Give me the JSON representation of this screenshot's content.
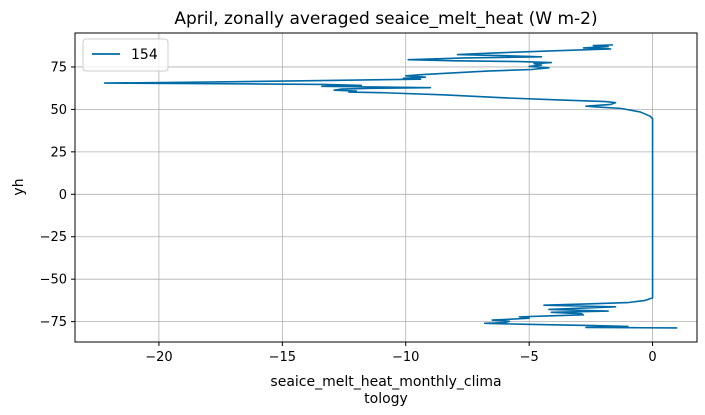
{
  "chart_data": {
    "type": "line",
    "title": "April, zonally averaged seaice_melt_heat (W m-2)",
    "xlabel_lines": [
      "seaice_melt_heat_monthly_clima",
      "tology"
    ],
    "ylabel": "yh",
    "xlim": [
      -23.4,
      1.8
    ],
    "ylim": [
      -87,
      95
    ],
    "x_ticks": [
      -20,
      -15,
      -10,
      -5,
      0
    ],
    "x_tick_labels": [
      "−20",
      "−15",
      "−10",
      "−5",
      "0"
    ],
    "y_ticks": [
      -75,
      -50,
      -25,
      0,
      25,
      50,
      75
    ],
    "y_tick_labels": [
      "−75",
      "−50",
      "−25",
      "0",
      "25",
      "50",
      "75"
    ],
    "grid": true,
    "legend_position": "top-left",
    "series": [
      {
        "name": "154",
        "color": "#006aa6",
        "points": [
          [
            -1.6,
            88.0
          ],
          [
            -2.4,
            87.6
          ],
          [
            -1.8,
            87.0
          ],
          [
            -2.8,
            86.2
          ],
          [
            -1.7,
            85.6
          ],
          [
            -4.0,
            84.5
          ],
          [
            -6.5,
            83.2
          ],
          [
            -7.9,
            82.3
          ],
          [
            -6.2,
            81.7
          ],
          [
            -4.5,
            81.0
          ],
          [
            -7.6,
            80.3
          ],
          [
            -9.9,
            79.3
          ],
          [
            -8.0,
            78.6
          ],
          [
            -5.4,
            78.2
          ],
          [
            -4.1,
            77.6
          ],
          [
            -4.8,
            76.9
          ],
          [
            -4.5,
            76.1
          ],
          [
            -5.0,
            75.3
          ],
          [
            -4.2,
            74.5
          ],
          [
            -4.9,
            73.5
          ],
          [
            -6.7,
            72.6
          ],
          [
            -8.2,
            71.4
          ],
          [
            -9.3,
            70.5
          ],
          [
            -10.0,
            69.8
          ],
          [
            -9.2,
            69.0
          ],
          [
            -10.1,
            68.3
          ],
          [
            -9.4,
            67.8
          ],
          [
            -13.8,
            66.9
          ],
          [
            -18.0,
            66.1
          ],
          [
            -22.2,
            65.5
          ],
          [
            -17.5,
            65.1
          ],
          [
            -13.3,
            64.7
          ],
          [
            -11.8,
            64.1
          ],
          [
            -13.4,
            63.6
          ],
          [
            -11.0,
            63.2
          ],
          [
            -9.0,
            62.8
          ],
          [
            -11.4,
            62.4
          ],
          [
            -12.6,
            62.0
          ],
          [
            -12.9,
            61.3
          ],
          [
            -12.0,
            60.8
          ],
          [
            -12.3,
            60.2
          ],
          [
            -10.9,
            59.8
          ],
          [
            -8.5,
            58.6
          ],
          [
            -6.0,
            56.8
          ],
          [
            -3.8,
            55.6
          ],
          [
            -1.9,
            54.6
          ],
          [
            -1.5,
            54.0
          ],
          [
            -1.7,
            52.9
          ],
          [
            -2.7,
            51.9
          ],
          [
            -2.1,
            51.3
          ],
          [
            -1.3,
            50.6
          ],
          [
            -0.5,
            48.5
          ],
          [
            -0.1,
            46.0
          ],
          [
            0.0,
            44.5
          ],
          [
            0.0,
            30.0
          ],
          [
            0.0,
            0.0
          ],
          [
            0.0,
            -30.0
          ],
          [
            0.0,
            -50.0
          ],
          [
            0.0,
            -61.0
          ],
          [
            -0.3,
            -62.5
          ],
          [
            -1.0,
            -63.8
          ],
          [
            -2.5,
            -64.5
          ],
          [
            -4.4,
            -65.3
          ],
          [
            -3.0,
            -65.8
          ],
          [
            -1.5,
            -66.3
          ],
          [
            -2.8,
            -67.0
          ],
          [
            -4.2,
            -67.8
          ],
          [
            -3.0,
            -68.3
          ],
          [
            -1.8,
            -68.8
          ],
          [
            -4.1,
            -69.5
          ],
          [
            -2.9,
            -70.3
          ],
          [
            -2.8,
            -71.0
          ],
          [
            -4.1,
            -71.6
          ],
          [
            -5.4,
            -72.2
          ],
          [
            -5.0,
            -73.0
          ],
          [
            -6.5,
            -74.1
          ],
          [
            -5.8,
            -74.8
          ],
          [
            -6.0,
            -75.6
          ],
          [
            -6.8,
            -76.0
          ],
          [
            -5.1,
            -76.6
          ],
          [
            -2.4,
            -77.3
          ],
          [
            -1.0,
            -77.8
          ],
          [
            -2.7,
            -78.4
          ],
          [
            -0.6,
            -78.6
          ],
          [
            1.0,
            -78.7
          ]
        ]
      }
    ]
  }
}
